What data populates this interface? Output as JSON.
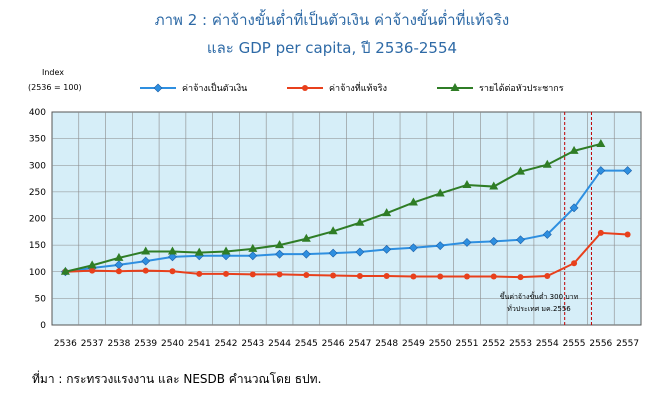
{
  "title_line1": "ภาพ 2 : ค่าจ้างขั้นต่ำที่เป็นตัวเงิน ค่าจ้างขั้นต่ำที่แท้จริง",
  "title_line2": "และ GDP per capita, ปี 2536-2554",
  "source": "ที่มา : กระทรวงแรงงาน และ NESDB คำนวณโดย ธปท.",
  "annotation_line1": "ขึ้นค่าจ้างขั้นต่ำ 300 บาท",
  "annotation_line2": "ทั่วประเทศ มค.2556",
  "chart_data": {
    "type": "line",
    "ylabel": "Index",
    "ylabel_sub": "(2536 = 100)",
    "ylim": [
      0,
      400
    ],
    "yticks": [
      0,
      50,
      100,
      150,
      200,
      250,
      300,
      350,
      400
    ],
    "categories": [
      "2536",
      "2537",
      "2538",
      "2539",
      "2540",
      "2541",
      "2542",
      "2543",
      "2544",
      "2545",
      "2546",
      "2547",
      "2548",
      "2549",
      "2550",
      "2551",
      "2552",
      "2553",
      "2554",
      "2555",
      "2556",
      "2557"
    ],
    "grid": true,
    "legend_position": "top",
    "vertical_markers": [
      "2555",
      "2556"
    ],
    "series": [
      {
        "name": "ค่าจ้างเป็นตัวเงิน",
        "color": "#2e8fe0",
        "marker": "diamond",
        "values": [
          100,
          107,
          113,
          120,
          128,
          130,
          130,
          130,
          133,
          133,
          135,
          137,
          142,
          145,
          149,
          155,
          157,
          160,
          170,
          220,
          290,
          290
        ]
      },
      {
        "name": "ค่าจ้างที่แท้จริง",
        "color": "#e8401c",
        "marker": "circle",
        "values": [
          100,
          102,
          101,
          102,
          101,
          96,
          96,
          95,
          95,
          94,
          93,
          92,
          92,
          91,
          91,
          91,
          91,
          90,
          92,
          116,
          173,
          170
        ]
      },
      {
        "name": "รายได้ต่อหัวประชากร",
        "color": "#2f7d26",
        "marker": "triangle",
        "values": [
          100,
          112,
          126,
          138,
          138,
          136,
          138,
          143,
          150,
          162,
          176,
          192,
          210,
          230,
          247,
          263,
          260,
          288,
          301,
          327,
          340,
          null
        ]
      }
    ]
  }
}
